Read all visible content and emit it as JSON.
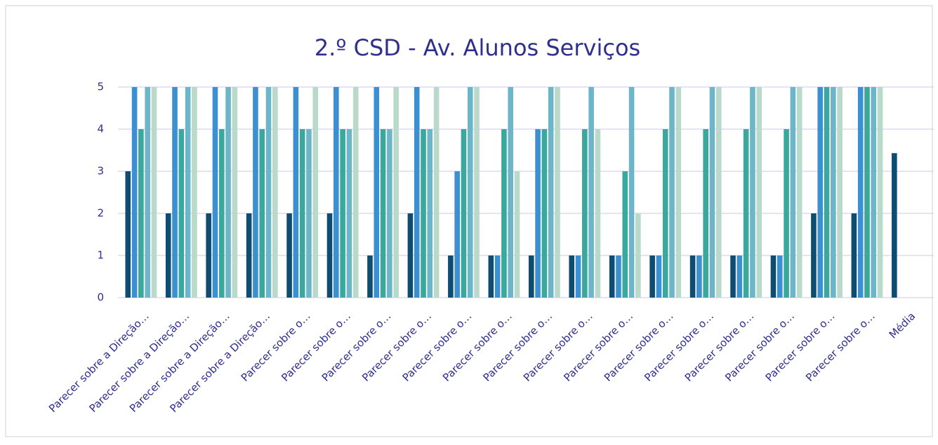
{
  "chart_data": {
    "type": "bar",
    "title": "2.º CSD - Av. Alunos Serviços",
    "categories": [
      "Parecer sobre a Direção…",
      "Parecer sobre a Direção…",
      "Parecer sobre a Direção…",
      "Parecer sobre a Direção…",
      "Parecer sobre o…",
      "Parecer sobre o…",
      "Parecer sobre o…",
      "Parecer sobre o…",
      "Parecer sobre o…",
      "Parecer sobre o…",
      "Parecer sobre o…",
      "Parecer sobre o…",
      "Parecer sobre o…",
      "Parecer sobre o…",
      "Parecer sobre o…",
      "Parecer sobre o…",
      "Parecer sobre o…",
      "Parecer sobre o…",
      "Parecer sobre o…",
      "Média"
    ],
    "series": [
      {
        "color": "#0f4c71",
        "values": [
          3,
          2,
          2,
          2,
          2,
          2,
          1,
          2,
          1,
          1,
          1,
          1,
          1,
          1,
          1,
          1,
          1,
          2,
          2,
          3.43
        ]
      },
      {
        "color": "#3a90d0",
        "values": [
          5,
          5,
          5,
          5,
          5,
          5,
          5,
          5,
          3,
          1,
          4,
          1,
          1,
          1,
          1,
          1,
          1,
          5,
          5,
          null
        ]
      },
      {
        "color": "#3aa89c",
        "values": [
          4,
          4,
          4,
          4,
          4,
          4,
          4,
          4,
          4,
          4,
          4,
          4,
          3,
          4,
          4,
          4,
          4,
          5,
          5,
          null
        ]
      },
      {
        "color": "#6db5c8",
        "values": [
          5,
          5,
          5,
          5,
          4,
          4,
          4,
          4,
          5,
          5,
          5,
          5,
          5,
          5,
          5,
          5,
          5,
          5,
          5,
          null
        ]
      },
      {
        "color": "#b9d9cb",
        "values": [
          5,
          5,
          5,
          5,
          5,
          5,
          5,
          5,
          5,
          3,
          5,
          4,
          2,
          5,
          5,
          5,
          5,
          5,
          5,
          null
        ]
      }
    ],
    "ylim": [
      0,
      5
    ],
    "yticks": [
      0,
      1,
      2,
      3,
      4,
      5
    ],
    "grid": true
  }
}
